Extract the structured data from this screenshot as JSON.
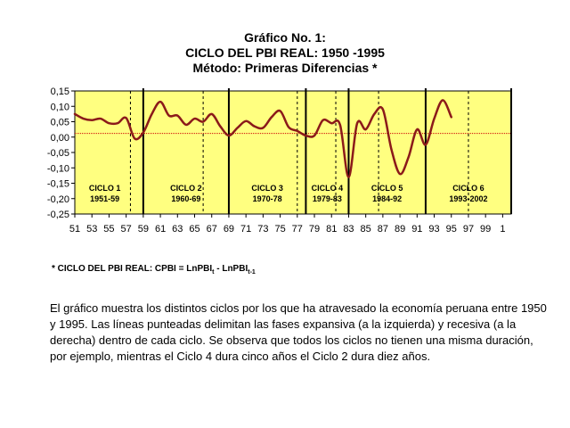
{
  "title": {
    "line1": "Gráfico No. 1:",
    "line2": "CICLO DEL PBI REAL: 1950 -1995",
    "line3": "Método: Primeras Diferencias *"
  },
  "chart_data": {
    "type": "line",
    "xlim": [
      1951,
      2002
    ],
    "ylim": [
      -0.25,
      0.15
    ],
    "y_ticks": [
      0.15,
      0.1,
      0.05,
      0.0,
      -0.05,
      -0.1,
      -0.15,
      -0.2,
      -0.25
    ],
    "y_tick_labels": [
      "0,15",
      "0,10",
      "0,05",
      "0,00",
      "-0,05",
      "-0,10",
      "-0,15",
      "-0,20",
      "-0,25"
    ],
    "x_ticks": [
      1951,
      1953,
      1955,
      1957,
      1959,
      1961,
      1963,
      1965,
      1967,
      1969,
      1971,
      1973,
      1975,
      1977,
      1979,
      1981,
      1983,
      1985,
      1987,
      1989,
      1991,
      1993,
      1995,
      1997,
      1999,
      2001
    ],
    "x_tick_labels": [
      "51",
      "53",
      "55",
      "57",
      "59",
      "61",
      "63",
      "65",
      "67",
      "69",
      "71",
      "73",
      "75",
      "77",
      "79",
      "81",
      "83",
      "85",
      "87",
      "89",
      "91",
      "93",
      "95",
      "97",
      "99",
      "1"
    ],
    "reference_line": 0.012,
    "series": [
      {
        "x": [
          1951,
          1952,
          1953,
          1954,
          1955,
          1956,
          1957,
          1958,
          1959,
          1960,
          1961,
          1962,
          1963,
          1964,
          1965,
          1966,
          1967,
          1968,
          1969,
          1970,
          1971,
          1972,
          1973,
          1974,
          1975,
          1976,
          1977,
          1978,
          1979,
          1980,
          1981,
          1982,
          1983,
          1984,
          1985,
          1986,
          1987,
          1988,
          1989,
          1990,
          1991,
          1992,
          1993,
          1994,
          1995
        ],
        "y": [
          0.075,
          0.06,
          0.055,
          0.06,
          0.045,
          0.045,
          0.062,
          -0.005,
          0.015,
          0.075,
          0.115,
          0.07,
          0.07,
          0.04,
          0.06,
          0.05,
          0.075,
          0.035,
          0.005,
          0.03,
          0.052,
          0.035,
          0.03,
          0.065,
          0.085,
          0.032,
          0.02,
          0.005,
          0.005,
          0.055,
          0.045,
          0.04,
          -0.13,
          0.045,
          0.025,
          0.075,
          0.09,
          -0.04,
          -0.12,
          -0.065,
          0.025,
          -0.025,
          0.06,
          0.12,
          0.065
        ]
      }
    ],
    "cycle_boundaries": [
      1959,
      1969,
      1978,
      1983,
      1992,
      2002
    ],
    "phase_dividers": [
      1957.5,
      1966,
      1977,
      1981.5,
      1986.5,
      1997
    ],
    "cycles": [
      {
        "name": "CICLO 1",
        "years": "1951-59",
        "center": 1954.5
      },
      {
        "name": "CICLO 2",
        "years": "1960-69",
        "center": 1964
      },
      {
        "name": "CICLO 3",
        "years": "1970-78",
        "center": 1973.5
      },
      {
        "name": "CICLO 4",
        "years": "1979-83",
        "center": 1980.5
      },
      {
        "name": "CICLO 5",
        "years": "1984-92",
        "center": 1987.5
      },
      {
        "name": "CICLO 6",
        "years": "1993-2002",
        "center": 1997
      }
    ],
    "colors": {
      "plot_background": "#ffff80",
      "series": "#8b1a1a",
      "reference_line": "#cc0000",
      "cycle_line": "#000000"
    }
  },
  "note": {
    "prefix": "* CICLO DEL PBI REAL: CPBI = LnPBI",
    "sub1": "t",
    "middle": " - LnPBI",
    "sub2": "t-1"
  },
  "description": "El gráfico muestra los distintos ciclos por los que ha atravesado la economía peruana entre 1950 y 1995. Las líneas punteadas delimitan las fases expansiva (a la izquierda) y recesiva (a la derecha) dentro de cada ciclo. Se observa que todos los ciclos no tienen una misma duración, por ejemplo, mientras el Ciclo 4 dura cinco años el Ciclo 2 dura diez años."
}
